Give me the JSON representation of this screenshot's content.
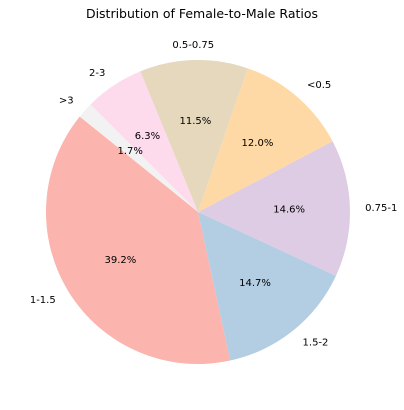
{
  "chart_data": {
    "type": "pie",
    "title": "Distribution of Female-to-Male Ratios",
    "start_angle_deg": 135,
    "direction": "counterclockwise",
    "slices": [
      {
        "label": ">3",
        "value": 1.7,
        "pct_text": "1.7%",
        "color": "#f2f2f2"
      },
      {
        "label": "1-1.5",
        "value": 39.2,
        "pct_text": "39.2%",
        "color": "#fbb4ae"
      },
      {
        "label": "1.5-2",
        "value": 14.7,
        "pct_text": "14.7%",
        "color": "#b3cde3"
      },
      {
        "label": "0.75-1",
        "value": 14.6,
        "pct_text": "14.6%",
        "color": "#decbe4"
      },
      {
        "label": "<0.5",
        "value": 12.0,
        "pct_text": "12.0%",
        "color": "#fed9a6"
      },
      {
        "label": "0.5-0.75",
        "value": 11.5,
        "pct_text": "11.5%",
        "color": "#e5d8bd"
      },
      {
        "label": "2-3",
        "value": 6.3,
        "pct_text": "6.3%",
        "color": "#fddaec"
      }
    ]
  }
}
